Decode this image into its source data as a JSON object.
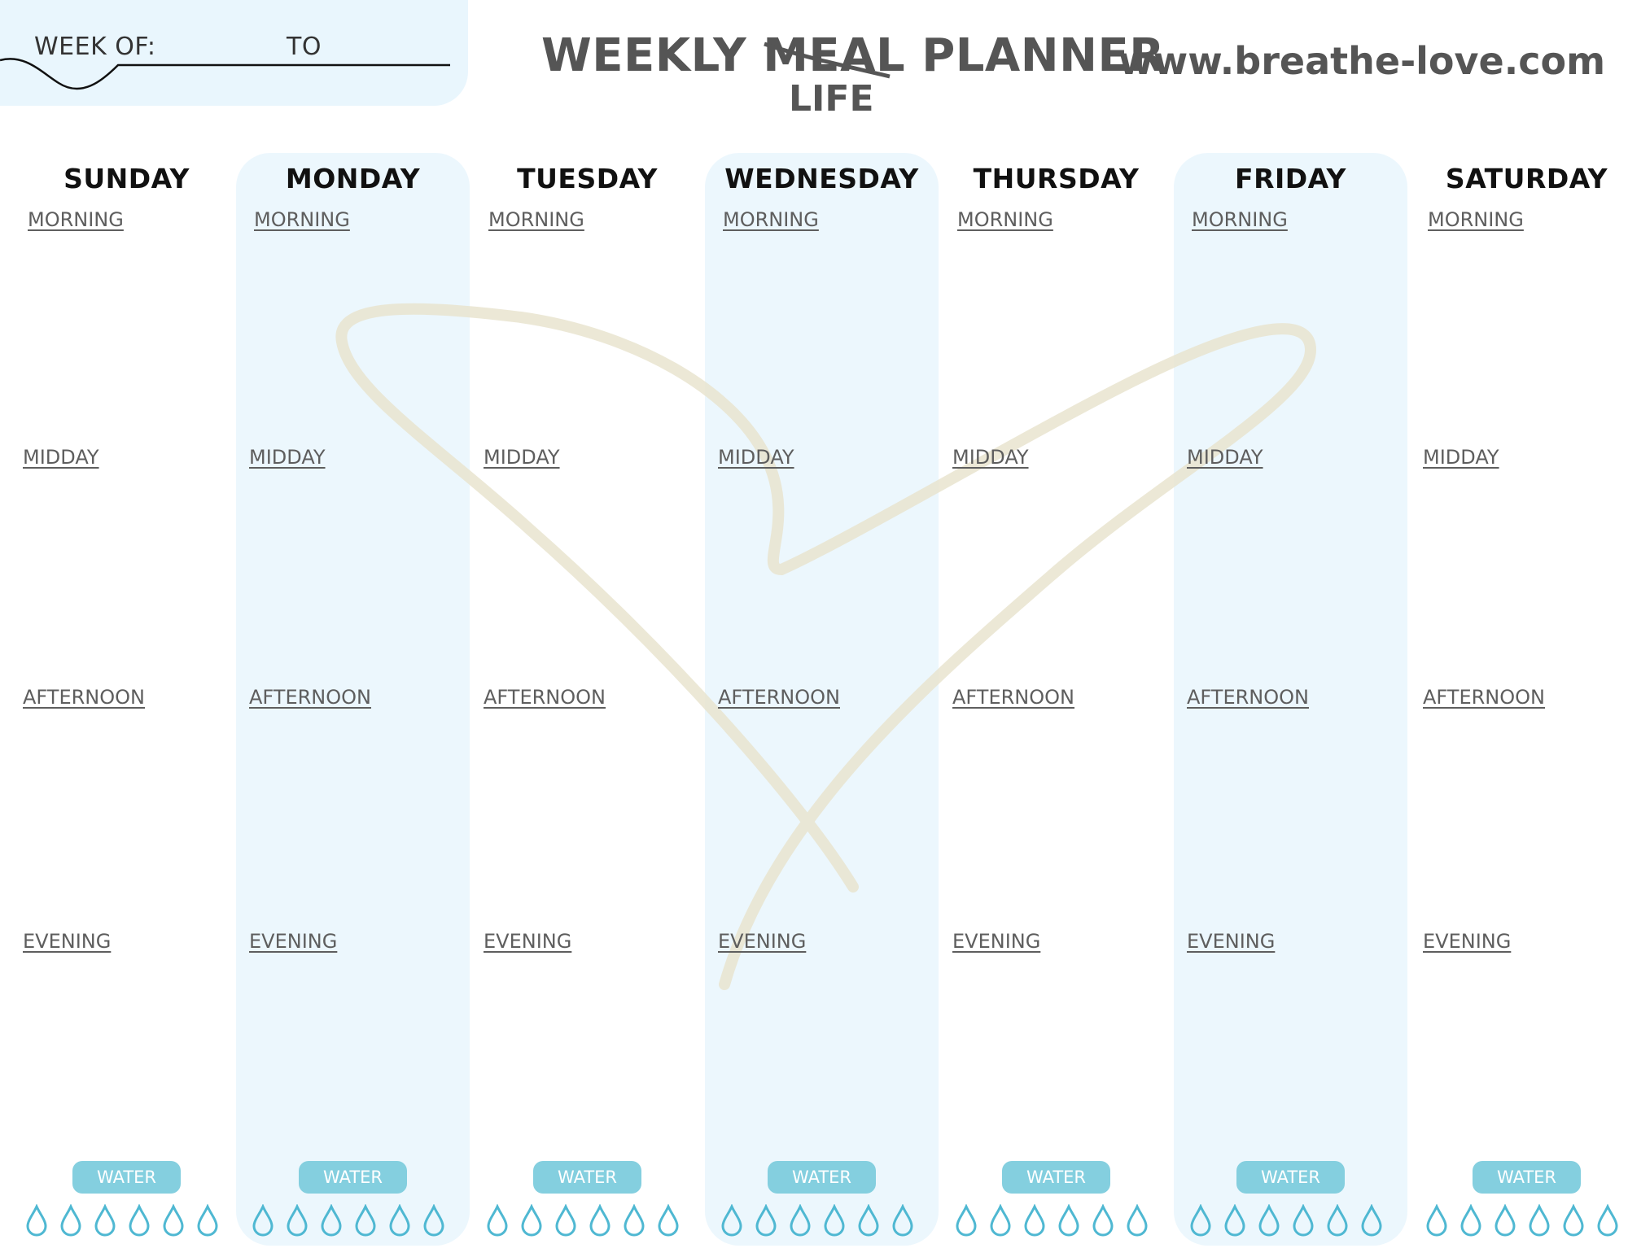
{
  "header": {
    "week_of_label": "WEEK OF:",
    "to_label": "TO",
    "title_prefix": "WEEKLY ",
    "title_struck": "MEAL",
    "title_suffix": " PLANNER",
    "title_replacement": "LIFE",
    "website": "www.breathe-love.com"
  },
  "days": [
    {
      "name": "SUNDAY"
    },
    {
      "name": "MONDAY"
    },
    {
      "name": "TUESDAY"
    },
    {
      "name": "WEDNESDAY"
    },
    {
      "name": "THURSDAY"
    },
    {
      "name": "FRIDAY"
    },
    {
      "name": "SATURDAY"
    }
  ],
  "slots": [
    "MORNING",
    "MIDDAY",
    "AFTERNOON",
    "EVENING"
  ],
  "water": {
    "label": "WATER",
    "drops_per_day": 6
  },
  "colors": {
    "column_shade": "#ecf7fd",
    "week_box": "#e9f6fd",
    "water_badge": "#84cfdf",
    "drop_outline": "#4fb8d2",
    "heart_stroke": "#e9e4cf"
  },
  "decoration": {
    "watermark": "heart-outline"
  }
}
